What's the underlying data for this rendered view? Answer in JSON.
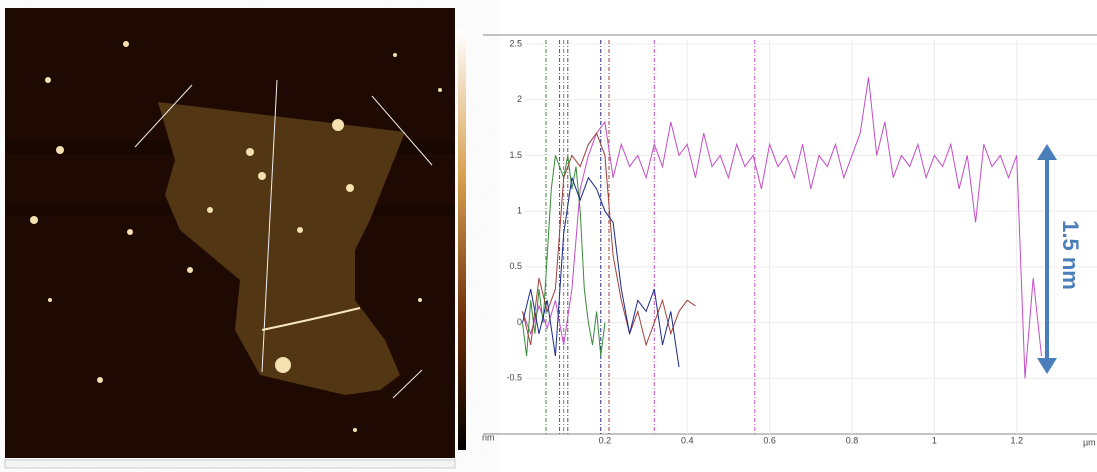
{
  "chart_data": {
    "type": "line",
    "annotation": "1.5 nm",
    "y_unit": "nm",
    "x_unit": "µm",
    "xlim": [
      0,
      1.39
    ],
    "ylim": [
      -1,
      2.5
    ],
    "xticks": [
      0.2,
      0.4,
      0.6,
      0.8,
      1,
      1.2
    ],
    "yticks": [
      -0.5,
      0,
      0.5,
      1,
      1.5,
      2,
      2.5
    ],
    "grid": true,
    "markers": [
      {
        "x": 0.057,
        "color": "#3a8a3a"
      },
      {
        "x": 0.09,
        "color": "#555555"
      },
      {
        "x": 0.1,
        "color": "#777777"
      },
      {
        "x": 0.11,
        "color": "#555555"
      },
      {
        "x": 0.19,
        "color": "#1a2a8a"
      },
      {
        "x": 0.21,
        "color": "#a0403a"
      },
      {
        "x": 0.32,
        "color": "#c44cc4"
      },
      {
        "x": 0.564,
        "color": "#c44cc4"
      }
    ],
    "series": [
      {
        "color": "#c44cc4",
        "x": [
          0,
          0.02,
          0.04,
          0.06,
          0.08,
          0.1,
          0.12,
          0.14,
          0.16,
          0.18,
          0.2,
          0.22,
          0.24,
          0.26,
          0.28,
          0.3,
          0.32,
          0.34,
          0.36,
          0.38,
          0.4,
          0.42,
          0.44,
          0.46,
          0.48,
          0.5,
          0.52,
          0.54,
          0.56,
          0.58,
          0.6,
          0.62,
          0.64,
          0.66,
          0.68,
          0.7,
          0.72,
          0.74,
          0.76,
          0.78,
          0.8,
          0.82,
          0.84,
          0.86,
          0.88,
          0.9,
          0.92,
          0.94,
          0.96,
          0.98,
          1,
          1.02,
          1.04,
          1.06,
          1.08,
          1.1,
          1.12,
          1.14,
          1.16,
          1.18,
          1.2,
          1.22,
          1.24,
          1.26
        ],
        "values": [
          0.1,
          -0.1,
          0.15,
          -0.05,
          0.2,
          -0.2,
          0.3,
          1.2,
          1.5,
          1.7,
          1.8,
          1.3,
          1.6,
          1.4,
          1.5,
          1.3,
          1.6,
          1.4,
          1.8,
          1.5,
          1.6,
          1.3,
          1.7,
          1.4,
          1.5,
          1.3,
          1.6,
          1.4,
          1.5,
          1.2,
          1.6,
          1.4,
          1.5,
          1.3,
          1.6,
          1.2,
          1.5,
          1.4,
          1.6,
          1.3,
          1.5,
          1.7,
          2.2,
          1.5,
          1.8,
          1.3,
          1.5,
          1.4,
          1.6,
          1.3,
          1.5,
          1.4,
          1.6,
          1.2,
          1.5,
          0.9,
          1.6,
          1.4,
          1.5,
          1.3,
          1.5,
          -0.5,
          0.4,
          -0.3
        ]
      },
      {
        "color": "#3a8a3a",
        "x": [
          0,
          0.01,
          0.02,
          0.03,
          0.04,
          0.05,
          0.06,
          0.07,
          0.08,
          0.09,
          0.1,
          0.11,
          0.12,
          0.13,
          0.14,
          0.15,
          0.16,
          0.17,
          0.18,
          0.19,
          0.2
        ],
        "values": [
          0,
          -0.3,
          0.2,
          -0.1,
          0.3,
          0,
          0.6,
          1.2,
          1.5,
          1.4,
          1.3,
          1.5,
          1.2,
          1.4,
          1.0,
          0.3,
          0,
          -0.2,
          0.1,
          -0.3,
          0
        ]
      },
      {
        "color": "#a0403a",
        "x": [
          0,
          0.02,
          0.04,
          0.06,
          0.08,
          0.1,
          0.12,
          0.14,
          0.16,
          0.18,
          0.2,
          0.22,
          0.24,
          0.26,
          0.28,
          0.3,
          0.32,
          0.34,
          0.36,
          0.38,
          0.4,
          0.42
        ],
        "values": [
          0.1,
          -0.2,
          0.4,
          0.1,
          0.3,
          1.3,
          1.5,
          1.4,
          1.6,
          1.7,
          1.5,
          0.6,
          0.2,
          -0.1,
          0.1,
          -0.2,
          0,
          0.2,
          -0.1,
          0.1,
          0.2,
          0.15
        ]
      },
      {
        "color": "#1a2a8a",
        "x": [
          0,
          0.02,
          0.04,
          0.06,
          0.08,
          0.1,
          0.12,
          0.14,
          0.16,
          0.18,
          0.2,
          0.22,
          0.24,
          0.26,
          0.28,
          0.3,
          0.32,
          0.34,
          0.36,
          0.38
        ],
        "values": [
          0,
          0.3,
          -0.1,
          0.2,
          -0.3,
          0.8,
          1.3,
          1.1,
          1.3,
          1.2,
          1.0,
          0.9,
          0.3,
          -0.1,
          0.2,
          0.1,
          0.3,
          -0.2,
          0.1,
          -0.4
        ]
      }
    ]
  }
}
